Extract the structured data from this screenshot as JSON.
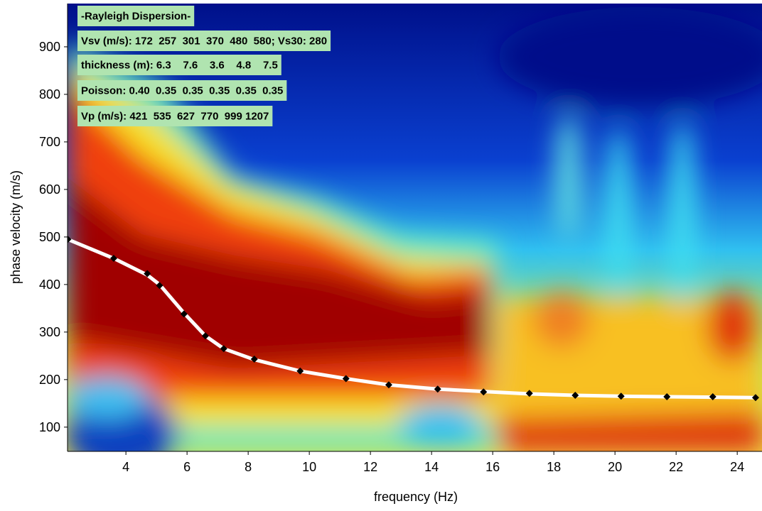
{
  "chart_data": {
    "type": "line",
    "annotations": [
      "-Rayleigh Dispersion-",
      "Vsv (m/s): 172  257  301  370  480  580; Vs30: 280",
      "thickness (m): 6.3    7.6    3.6    4.8    7.5",
      "Poisson: 0.40  0.35  0.35  0.35  0.35  0.35",
      "Vp (m/s): 421  535  627  770  999 1207"
    ],
    "xlabel": "frequency (Hz)",
    "ylabel": "phase velocity (m/s)",
    "xlim": [
      2.09,
      24.81
    ],
    "ylim": [
      49,
      991
    ],
    "xticks": [
      4,
      6,
      8,
      10,
      12,
      14,
      16,
      18,
      20,
      22,
      24
    ],
    "yticks": [
      100,
      200,
      300,
      400,
      500,
      600,
      700,
      800,
      900
    ],
    "x": [
      2.1,
      3.6,
      4.7,
      5.1,
      5.9,
      6.6,
      7.2,
      8.2,
      9.7,
      11.2,
      12.6,
      14.2,
      15.7,
      17.2,
      18.7,
      20.2,
      21.7,
      23.2,
      24.6
    ],
    "series": [
      {
        "color": "#ffffff",
        "values": [
          495,
          455,
          420,
          400,
          340,
          292,
          265,
          242,
          218,
          202,
          189,
          180,
          175,
          170,
          167,
          165,
          164,
          163,
          162
        ]
      },
      {
        "color": "#000000",
        "marker": "diamond",
        "values": [
          495,
          455,
          423,
          398,
          338,
          292,
          265,
          243,
          218,
          202,
          189,
          180,
          174,
          171,
          167,
          165,
          164,
          164,
          162
        ]
      }
    ]
  }
}
